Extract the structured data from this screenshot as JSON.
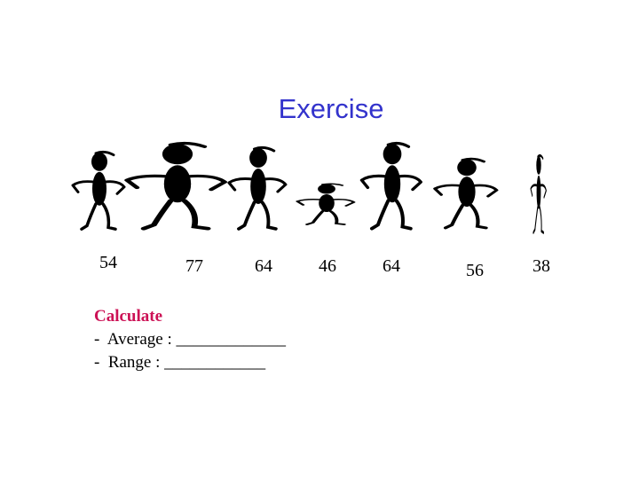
{
  "title": "Exercise",
  "values": [
    54,
    77,
    64,
    46,
    64,
    56,
    38
  ],
  "task": {
    "heading": "Calculate",
    "items": [
      "-  Average : _____________",
      "-  Range : ____________"
    ]
  }
}
